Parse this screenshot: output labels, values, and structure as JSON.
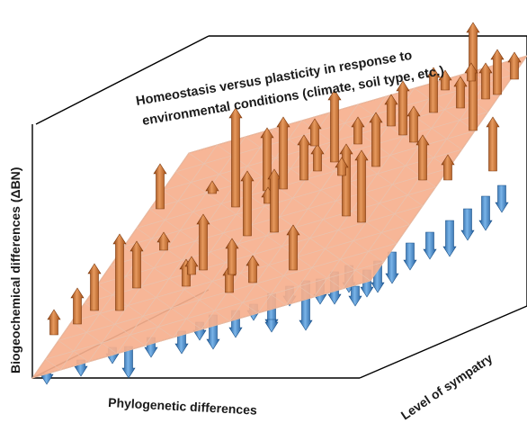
{
  "diagram": {
    "title_line1": "Homeostasis versus plasticity in response to",
    "title_line2": "environmental conditions (climate, soil type, etc.)",
    "y_axis_label": "Biogeochemical differences (ΔBN)",
    "x_axis_label": "Phylogenetic differences",
    "z_axis_label": "Level of sympatry"
  },
  "colors": {
    "plane_fill": "#f6b08e",
    "plane_grid": "#e9c2ad",
    "up_arrow": "#b95a18",
    "up_arrow_light": "#e79a5e",
    "down_arrow": "#2a6fb5",
    "down_arrow_light": "#6aa7e0",
    "axis": "#000000"
  }
}
